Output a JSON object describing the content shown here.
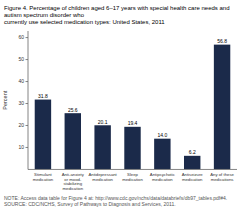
{
  "chart_data": {
    "type": "bar",
    "title": "Figure 4. Percentage of children aged 6–17 years with special health care needs and autism spectrum disorder who\ncurrently use selected medication types: United States, 2011",
    "categories": [
      "Stimulant\nmedication",
      "Anti-anxiety\nor mood-\nstabilizing\nmedication",
      "Antidepressant\nmedication",
      "Sleep\nmedication",
      "Antipsychotic\nmedication",
      "Antiseizure\nmedication",
      "Any of these\nmedications"
    ],
    "values": [
      31.8,
      25.6,
      20.1,
      19.4,
      14.0,
      6.2,
      56.8
    ],
    "value_labels": [
      "31.8",
      "25.6",
      "20.1",
      "19.4",
      "14.0",
      "6.2",
      "56.8"
    ],
    "data_labels": true,
    "color": "#1b2a4a",
    "ylabel": "Percent",
    "ylim": [
      0,
      63
    ],
    "yticks": [
      10,
      20,
      30,
      40,
      50,
      60
    ],
    "annotations": [
      "NOTE: Access data table for Figure 4 at: http://www.cdc.gov/nchs/data/databriefs/db97_tables.pdf#4.",
      "SOURCE: CDC/NCHS, Survey of Pathways to Diagnosis and Services, 2011."
    ]
  }
}
